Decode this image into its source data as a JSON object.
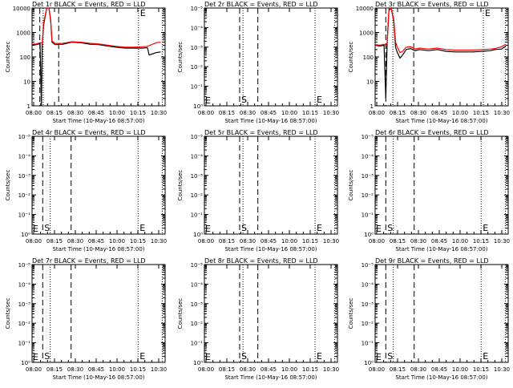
{
  "panels": [
    {
      "title": "Det 1r BLACK = Events, RED = LLD",
      "log_range": [
        0,
        4
      ],
      "tick_values": [
        "1",
        "10",
        "100",
        "1000",
        "10000"
      ]
    },
    {
      "title": "Det 2r BLACK = Events, RED = LLD",
      "log_range": [
        0,
        5
      ],
      "tick_values": [
        "10⁰",
        "10⁻¹",
        "10⁻²",
        "10⁻³",
        "10⁻⁴",
        "10⁻⁵"
      ]
    },
    {
      "title": "Det 3r BLACK = Events, RED = LLD",
      "log_range": [
        0,
        4
      ],
      "tick_values": [
        "1",
        "10",
        "100",
        "1000",
        "10000"
      ]
    },
    {
      "title": "Det 4r BLACK = Events, RED = LLD",
      "log_range": [
        0,
        5
      ],
      "tick_values": [
        "10⁰",
        "10⁻¹",
        "10⁻²",
        "10⁻³",
        "10⁻⁴",
        "10⁻⁵"
      ]
    },
    {
      "title": "Det 5r BLACK = Events, RED = LLD",
      "log_range": [
        0,
        5
      ],
      "tick_values": [
        "10⁰",
        "10⁻¹",
        "10⁻²",
        "10⁻³",
        "10⁻⁴",
        "10⁻⁵"
      ]
    },
    {
      "title": "Det 6r BLACK = Events, RED = LLD",
      "log_range": [
        0,
        5
      ],
      "tick_values": [
        "10⁰",
        "10⁻¹",
        "10⁻²",
        "10⁻³",
        "10⁻⁴",
        "10⁻⁵"
      ]
    },
    {
      "title": "Det 7r BLACK = Events, RED = LLD",
      "log_range": [
        0,
        5
      ],
      "tick_values": [
        "10⁰",
        "10⁻¹",
        "10⁻²",
        "10⁻³",
        "10⁻⁴",
        "10⁻⁵"
      ]
    },
    {
      "title": "Det 8r BLACK = Events, RED = LLD",
      "log_range": [
        0,
        5
      ],
      "tick_values": [
        "10⁰",
        "10⁻¹",
        "10⁻²",
        "10⁻³",
        "10⁻⁴",
        "10⁻⁵"
      ]
    },
    {
      "title": "Det 9r BLACK = Events, RED = LLD",
      "log_range": [
        0,
        5
      ],
      "tick_values": [
        "10⁰",
        "10⁻¹",
        "10⁻²",
        "10⁻³",
        "10⁻⁴",
        "10⁻⁵"
      ]
    }
  ],
  "shared": {
    "ylabel": "Counts/sec",
    "xlabel": "Start Time (10-May-16 08:57:00)",
    "x_tick_labels": [
      "08:00",
      "08:15",
      "08:30",
      "08:45",
      "10:00",
      "10:15",
      "10:30"
    ],
    "marker_s": "S",
    "marker_e": "E",
    "events_color": "#000000",
    "lld_color": "#ff0000"
  },
  "chart_data": [
    {
      "type": "line",
      "title": "Det 1r BLACK = Events, RED = LLD",
      "xlabel": "Start Time (10-May-16 08:57:00)",
      "ylabel": "Counts/sec",
      "x_tick_labels": [
        "08:00",
        "08:15",
        "08:30",
        "08:45",
        "10:00",
        "10:15",
        "10:30"
      ],
      "y_scale": "log",
      "ylim": [
        1,
        10000
      ],
      "x_range_seconds": [
        0,
        3000
      ],
      "series": [
        {
          "name": "Events",
          "color": "#000000",
          "points": [
            [
              0,
              300
            ],
            [
              100,
              320
            ],
            [
              180,
              350
            ],
            [
              210,
              1
            ],
            [
              230,
              300
            ],
            [
              260,
              2000
            ],
            [
              330,
              10000
            ],
            [
              380,
              10000
            ],
            [
              420,
              3000
            ],
            [
              450,
              400
            ],
            [
              520,
              320
            ],
            [
              700,
              330
            ],
            [
              900,
              400
            ],
            [
              1100,
              380
            ],
            [
              1300,
              330
            ],
            [
              1500,
              320
            ],
            [
              1700,
              280
            ],
            [
              1900,
              250
            ],
            [
              2100,
              230
            ],
            [
              2300,
              230
            ],
            [
              2500,
              230
            ],
            [
              2600,
              240
            ],
            [
              2640,
              120
            ],
            [
              2700,
              130
            ],
            [
              2800,
              150
            ],
            [
              2900,
              160
            ]
          ]
        },
        {
          "name": "LLD",
          "color": "#ff0000",
          "points": [
            [
              0,
              330
            ],
            [
              100,
              340
            ],
            [
              180,
              380
            ],
            [
              230,
              360
            ],
            [
              260,
              2500
            ],
            [
              330,
              10000
            ],
            [
              380,
              10000
            ],
            [
              420,
              3500
            ],
            [
              450,
              450
            ],
            [
              520,
              350
            ],
            [
              700,
              360
            ],
            [
              900,
              420
            ],
            [
              1100,
              400
            ],
            [
              1300,
              360
            ],
            [
              1500,
              340
            ],
            [
              1700,
              300
            ],
            [
              1900,
              270
            ],
            [
              2100,
              250
            ],
            [
              2300,
              250
            ],
            [
              2500,
              260
            ],
            [
              2600,
              270
            ],
            [
              2700,
              320
            ],
            [
              2800,
              380
            ],
            [
              2900,
              400
            ]
          ]
        }
      ],
      "dashed_lines_seconds": [
        175,
        600
      ],
      "dotted_lines_seconds": [
        250,
        2400,
        2940
      ]
    },
    {
      "type": "line",
      "title": "Det 2r BLACK = Events, RED = LLD",
      "xlabel": "Start Time (10-May-16 08:57:00)",
      "ylabel": "Counts/sec",
      "x_tick_labels": [
        "08:00",
        "08:15",
        "08:30",
        "08:45",
        "10:00",
        "10:15",
        "10:30"
      ],
      "y_scale": "log",
      "ylim": [
        1e-05,
        1
      ],
      "series": [],
      "dashed_lines_seconds": [
        795,
        1205
      ],
      "dotted_lines_seconds": [
        870,
        2495,
        2940
      ]
    },
    {
      "type": "line",
      "title": "Det 3r BLACK = Events, RED = LLD",
      "xlabel": "Start Time (10-May-16 08:57:00)",
      "ylabel": "Counts/sec",
      "x_tick_labels": [
        "08:00",
        "08:15",
        "08:30",
        "08:45",
        "10:00",
        "10:15",
        "10:30"
      ],
      "y_scale": "log",
      "ylim": [
        1,
        10000
      ],
      "x_range_seconds": [
        0,
        3000
      ],
      "series": [
        {
          "name": "Events",
          "color": "#000000",
          "points": [
            [
              0,
              300
            ],
            [
              100,
              280
            ],
            [
              200,
              300
            ],
            [
              240,
              2
            ],
            [
              270,
              300
            ],
            [
              310,
              8000
            ],
            [
              360,
              10000
            ],
            [
              420,
              3000
            ],
            [
              460,
              250
            ],
            [
              500,
              150
            ],
            [
              560,
              90
            ],
            [
              620,
              120
            ],
            [
              700,
              200
            ],
            [
              800,
              220
            ],
            [
              900,
              180
            ],
            [
              1000,
              200
            ],
            [
              1200,
              180
            ],
            [
              1400,
              200
            ],
            [
              1600,
              170
            ],
            [
              1800,
              160
            ],
            [
              2000,
              160
            ],
            [
              2200,
              160
            ],
            [
              2400,
              170
            ],
            [
              2600,
              180
            ],
            [
              2700,
              200
            ],
            [
              2850,
              210
            ],
            [
              2950,
              280
            ]
          ]
        },
        {
          "name": "LLD",
          "color": "#ff0000",
          "points": [
            [
              0,
              320
            ],
            [
              100,
              300
            ],
            [
              200,
              330
            ],
            [
              240,
              300
            ],
            [
              270,
              350
            ],
            [
              310,
              9000
            ],
            [
              360,
              10000
            ],
            [
              420,
              3500
            ],
            [
              460,
              400
            ],
            [
              500,
              250
            ],
            [
              560,
              150
            ],
            [
              620,
              170
            ],
            [
              700,
              250
            ],
            [
              800,
              260
            ],
            [
              900,
              210
            ],
            [
              1000,
              230
            ],
            [
              1200,
              210
            ],
            [
              1400,
              230
            ],
            [
              1600,
              200
            ],
            [
              1800,
              190
            ],
            [
              2000,
              190
            ],
            [
              2200,
              190
            ],
            [
              2400,
              200
            ],
            [
              2600,
              210
            ],
            [
              2700,
              220
            ],
            [
              2850,
              260
            ],
            [
              2950,
              330
            ]
          ]
        }
      ],
      "dashed_lines_seconds": [
        240,
        870
      ],
      "dotted_lines_seconds": [
        400,
        2440,
        2935
      ]
    },
    {
      "type": "line",
      "title": "Det 4r BLACK = Events, RED = LLD",
      "xlabel": "Start Time (10-May-16 08:57:00)",
      "ylabel": "Counts/sec",
      "x_tick_labels": [
        "08:00",
        "08:15",
        "08:30",
        "08:45",
        "10:00",
        "10:15",
        "10:30"
      ],
      "y_scale": "log",
      "ylim": [
        1e-05,
        1
      ],
      "series": [],
      "dashed_lines_seconds": [
        240,
        880
      ],
      "dotted_lines_seconds": [
        410,
        2390,
        2935
      ]
    },
    {
      "type": "line",
      "title": "Det 5r BLACK = Events, RED = LLD",
      "xlabel": "Start Time (10-May-16 08:57:00)",
      "ylabel": "Counts/sec",
      "x_tick_labels": [
        "08:00",
        "08:15",
        "08:30",
        "08:45",
        "10:00",
        "10:15",
        "10:30"
      ],
      "y_scale": "log",
      "ylim": [
        1e-05,
        1
      ],
      "series": [],
      "dashed_lines_seconds": [
        795,
        1205
      ],
      "dotted_lines_seconds": [
        870,
        2495,
        2940
      ]
    },
    {
      "type": "line",
      "title": "Det 6r BLACK = Events, RED = LLD",
      "xlabel": "Start Time (10-May-16 08:57:00)",
      "ylabel": "Counts/sec",
      "x_tick_labels": [
        "08:00",
        "08:15",
        "08:30",
        "08:45",
        "10:00",
        "10:15",
        "10:30"
      ],
      "y_scale": "log",
      "ylim": [
        1e-05,
        1
      ],
      "series": [],
      "dashed_lines_seconds": [
        240,
        880
      ],
      "dotted_lines_seconds": [
        410,
        2390,
        2935
      ]
    },
    {
      "type": "line",
      "title": "Det 7r BLACK = Events, RED = LLD",
      "xlabel": "Start Time (10-May-16 08:57:00)",
      "ylabel": "Counts/sec",
      "x_tick_labels": [
        "08:00",
        "08:15",
        "08:30",
        "08:45",
        "10:00",
        "10:15",
        "10:30"
      ],
      "y_scale": "log",
      "ylim": [
        1e-05,
        1
      ],
      "series": [],
      "dashed_lines_seconds": [
        240,
        880
      ],
      "dotted_lines_seconds": [
        410,
        2390,
        2935
      ]
    },
    {
      "type": "line",
      "title": "Det 8r BLACK = Events, RED = LLD",
      "xlabel": "Start Time (10-May-16 08:57:00)",
      "ylabel": "Counts/sec",
      "x_tick_labels": [
        "08:00",
        "08:15",
        "08:30",
        "08:45",
        "10:00",
        "10:15",
        "10:30"
      ],
      "y_scale": "log",
      "ylim": [
        1e-05,
        1
      ],
      "series": [],
      "dashed_lines_seconds": [
        795,
        1205
      ],
      "dotted_lines_seconds": [
        870,
        2495,
        2940
      ]
    },
    {
      "type": "line",
      "title": "Det 9r BLACK = Events, RED = LLD",
      "xlabel": "Start Time (10-May-16 08:57:00)",
      "ylabel": "Counts/sec",
      "x_tick_labels": [
        "08:00",
        "08:15",
        "08:30",
        "08:45",
        "10:00",
        "10:15",
        "10:30"
      ],
      "y_scale": "log",
      "ylim": [
        1e-05,
        1
      ],
      "series": [],
      "dashed_lines_seconds": [
        240,
        880
      ],
      "dotted_lines_seconds": [
        410,
        2390,
        2935
      ]
    }
  ]
}
